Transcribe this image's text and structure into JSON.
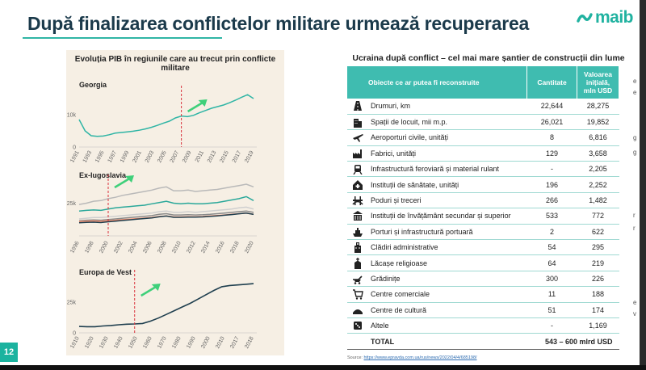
{
  "title": "După finalizarea conflictelor militare urmează recuperarea",
  "logo_text": "maib",
  "page_number": "12",
  "left_panel": {
    "title": "Evoluția PIB în regiunile care au trecut prin conflicte militare"
  },
  "chart_data": [
    {
      "type": "line",
      "title": "Georgia",
      "x": [
        "1991",
        "1992",
        "1993",
        "1994",
        "1995",
        "1996",
        "1997",
        "1998",
        "1999",
        "2000",
        "2001",
        "2002",
        "2003",
        "2004",
        "2005",
        "2006",
        "2007",
        "2008",
        "2009",
        "2010",
        "2011",
        "2012",
        "2013",
        "2014",
        "2015",
        "2016",
        "2017",
        "2018",
        "2019",
        "2020"
      ],
      "x_tick_labels": [
        "1991",
        "1993",
        "1995",
        "1997",
        "1999",
        "2001",
        "2003",
        "2005",
        "2007",
        "2009",
        "2011",
        "2013",
        "2015",
        "2017",
        "2019"
      ],
      "y_ticks": [
        "0",
        "10k"
      ],
      "ylim": [
        0,
        17000
      ],
      "series": [
        {
          "color": "#2fb5a5",
          "values": [
            8500,
            5000,
            3500,
            3300,
            3400,
            3800,
            4300,
            4500,
            4700,
            4900,
            5200,
            5600,
            6100,
            6700,
            7400,
            8000,
            9000,
            9600,
            9400,
            9800,
            10600,
            11300,
            12000,
            12500,
            13000,
            13700,
            14500,
            15400,
            16200,
            15000
          ]
        }
      ],
      "marker_x": "2008",
      "arrow": "up"
    },
    {
      "type": "line",
      "title": "Ex-Iugoslavia",
      "x": [
        "1996",
        "1997",
        "1998",
        "1999",
        "2000",
        "2001",
        "2002",
        "2003",
        "2004",
        "2005",
        "2006",
        "2007",
        "2008",
        "2009",
        "2010",
        "2011",
        "2012",
        "2013",
        "2014",
        "2015",
        "2016",
        "2017",
        "2018",
        "2019",
        "2020"
      ],
      "x_tick_labels": [
        "1996",
        "1998",
        "2000",
        "2002",
        "2004",
        "2006",
        "2008",
        "2010",
        "2012",
        "2014",
        "2016",
        "2018",
        "2020"
      ],
      "y_ticks": [
        "25k"
      ],
      "ylim": [
        0,
        42000
      ],
      "series": [
        {
          "color": "#b9b9b9",
          "values": [
            24000,
            25000,
            26500,
            27000,
            28500,
            29500,
            31000,
            32000,
            33000,
            34000,
            35000,
            36500,
            37500,
            34500,
            34500,
            35000,
            34000,
            34500,
            35000,
            35500,
            36500,
            37500,
            38500,
            39500,
            37500
          ]
        },
        {
          "color": "#2aa89a",
          "values": [
            19000,
            19500,
            19800,
            19500,
            20500,
            21500,
            22000,
            22500,
            23000,
            23500,
            24500,
            25500,
            26500,
            25000,
            24500,
            25000,
            24500,
            24500,
            25000,
            25500,
            26500,
            27500,
            28500,
            30000,
            27000
          ]
        },
        {
          "color": "#cfcfcf",
          "values": [
            13000,
            13500,
            14000,
            14000,
            14500,
            15000,
            15500,
            16000,
            16500,
            17000,
            17500,
            18500,
            19000,
            18000,
            18000,
            18500,
            18000,
            18500,
            19000,
            19500,
            20000,
            20500,
            21500,
            22000,
            20500
          ]
        },
        {
          "color": "#8a8a8a",
          "values": [
            11500,
            12000,
            12200,
            12000,
            12500,
            13000,
            13500,
            14000,
            14500,
            15000,
            15500,
            16500,
            17000,
            16000,
            16000,
            16200,
            16000,
            16200,
            16500,
            17000,
            17500,
            18000,
            18500,
            19000,
            18000
          ]
        },
        {
          "color": "#f08a6b",
          "values": [
            11000,
            11200,
            11400,
            11200,
            11600,
            12000,
            12400,
            12800,
            13200,
            13600,
            14000,
            14800,
            15200,
            14500,
            14500,
            14700,
            14600,
            14800,
            15200,
            15600,
            16000,
            16500,
            17000,
            17500,
            16500
          ]
        },
        {
          "color": "#1f3f4f",
          "values": [
            10000,
            10300,
            10500,
            10200,
            10800,
            11300,
            11800,
            12300,
            12800,
            13300,
            13800,
            14600,
            15200,
            14200,
            14200,
            14400,
            14300,
            14500,
            14900,
            15300,
            15800,
            16300,
            16900,
            17400,
            16400
          ]
        }
      ],
      "marker_x": "2000",
      "arrow": "up"
    },
    {
      "type": "line",
      "title": "Europa de Vest",
      "x": [
        "1910",
        "1915",
        "1920",
        "1925",
        "1930",
        "1935",
        "1940",
        "1945",
        "1950",
        "1955",
        "1960",
        "1965",
        "1970",
        "1975",
        "1980",
        "1985",
        "1990",
        "1995",
        "2000",
        "2005",
        "2010",
        "2015",
        "2018"
      ],
      "x_tick_labels": [
        "1910",
        "1920",
        "1930",
        "1940",
        "1950",
        "1960",
        "1970",
        "1980",
        "1990",
        "2000",
        "2010",
        "2018"
      ],
      "x_tick_texts": [
        "1910",
        "1920",
        "1930",
        "1940",
        "1950",
        "1960",
        "1970",
        "1980",
        "1990",
        "2000",
        "2010",
        "2017",
        "2018"
      ],
      "y_ticks": [
        "0",
        "25k"
      ],
      "ylim": [
        0,
        46000
      ],
      "series": [
        {
          "color": "#1f3f4f",
          "values": [
            5200,
            5000,
            5000,
            5600,
            6000,
            6600,
            7000,
            7200,
            7600,
            9500,
            12000,
            15000,
            18000,
            21000,
            24000,
            27500,
            31000,
            34500,
            37500,
            38500,
            39000,
            39500,
            40000
          ]
        }
      ],
      "marker_x": "1945",
      "arrow": "up"
    }
  ],
  "table": {
    "title": "Ucraina după conflict – cel mai mare șantier de construcții din lume",
    "headers": {
      "object": "Obiecte ce ar putea fi reconstruite",
      "quantity": "Cantitate",
      "value": "Valoarea inițială, mln USD"
    },
    "rows": [
      {
        "icon": "road-icon",
        "label": "Drumuri, km",
        "qty": "22,644",
        "value": "28,275"
      },
      {
        "icon": "building-icon",
        "label": "Spații de locuit, mii m.p.",
        "qty": "26,021",
        "value": "19,852"
      },
      {
        "icon": "airplane-icon",
        "label": "Aeroporturi civile, unități",
        "qty": "8",
        "value": "6,816"
      },
      {
        "icon": "factory-icon",
        "label": "Fabrici, unități",
        "qty": "129",
        "value": "3,658"
      },
      {
        "icon": "train-icon",
        "label": "Infrastructură feroviară și material rulant",
        "qty": "-",
        "value": "2,205"
      },
      {
        "icon": "hospital-icon",
        "label": "Instituții de sănătate, unități",
        "qty": "196",
        "value": "2,252"
      },
      {
        "icon": "bridge-icon",
        "label": "Poduri și treceri",
        "qty": "266",
        "value": "1,482"
      },
      {
        "icon": "school-icon",
        "label": "Instituții de învățământ secundar și superior",
        "qty": "533",
        "value": "772"
      },
      {
        "icon": "ship-icon",
        "label": "Porturi și infrastructură portuară",
        "qty": "2",
        "value": "622"
      },
      {
        "icon": "admin-building-icon",
        "label": "Clădiri administrative",
        "qty": "54",
        "value": "295"
      },
      {
        "icon": "church-icon",
        "label": "Lăcașe religioase",
        "qty": "64",
        "value": "219"
      },
      {
        "icon": "stroller-icon",
        "label": "Grădinițe",
        "qty": "300",
        "value": "226"
      },
      {
        "icon": "cart-icon",
        "label": "Centre comerciale",
        "qty": "11",
        "value": "188"
      },
      {
        "icon": "theatre-icon",
        "label": "Centre de cultură",
        "qty": "51",
        "value": "174"
      },
      {
        "icon": "dice-icon",
        "label": "Altele",
        "qty": "-",
        "value": "1,169"
      }
    ],
    "total": {
      "label": "TOTAL",
      "value": "543 – 600 mlrd USD"
    }
  },
  "source": {
    "label": "Source:",
    "url": "https://www.epravda.com.ua/rus/news/2022/04/4/685198/"
  },
  "edge_chars": [
    "e",
    "e",
    "g",
    "g",
    "r",
    "r",
    "e",
    "v"
  ],
  "colors": {
    "accent": "#2fb5a5",
    "title": "#1b3a4b",
    "table_header": "#3fbcb0",
    "panel_bg": "#f6efe4",
    "marker": "#d9313b",
    "arrow": "#3fd07a"
  }
}
